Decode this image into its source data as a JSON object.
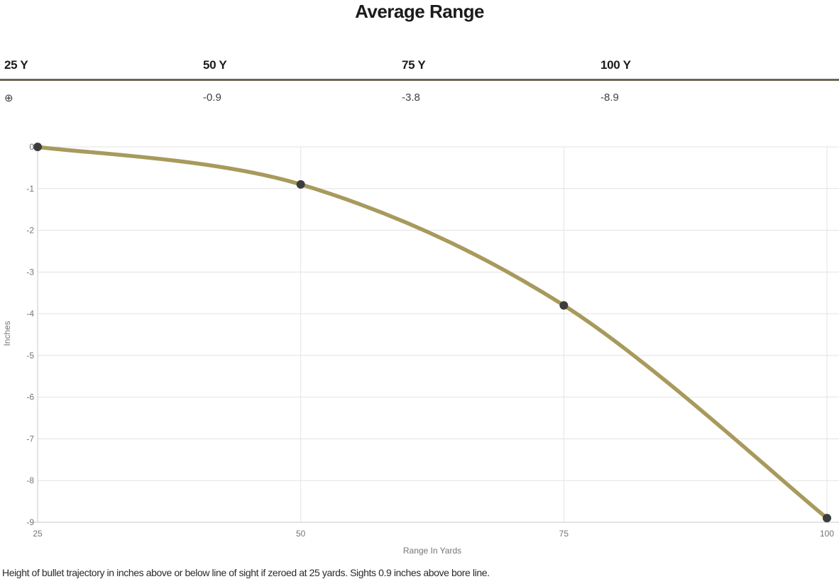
{
  "title": "Average Range",
  "table": {
    "columns": [
      {
        "label": "25 Y",
        "value": "⊕"
      },
      {
        "label": "50 Y",
        "value": "-0.9"
      },
      {
        "label": "75 Y",
        "value": "-3.8"
      },
      {
        "label": "100 Y",
        "value": "-8.9"
      }
    ]
  },
  "chart_data": {
    "type": "line",
    "x": [
      25,
      50,
      75,
      100
    ],
    "series": [
      {
        "name": "Average Range",
        "values": [
          0,
          -0.9,
          -3.8,
          -8.9
        ]
      }
    ],
    "xlabel": "Range In Yards",
    "ylabel": "Inches",
    "xticks": [
      25,
      50,
      75,
      100
    ],
    "yticks": [
      0,
      -1,
      -2,
      -3,
      -4,
      -5,
      -6,
      -7,
      -8,
      -9
    ],
    "xlim": [
      25,
      100
    ],
    "ylim": [
      -9,
      0
    ],
    "grid": true,
    "legend": "none"
  },
  "colors": {
    "line": "#a89a5c",
    "point": "#3d3d3d",
    "grid": "#e3e3e3",
    "axis": "#c9c9c9",
    "tick_text": "#757575",
    "table_rule": "#6e6454",
    "heading_text": "#1b1b1b"
  },
  "footer": "Height of bullet trajectory in inches above or below line of sight if zeroed at 25 yards. Sights 0.9 inches above bore line."
}
